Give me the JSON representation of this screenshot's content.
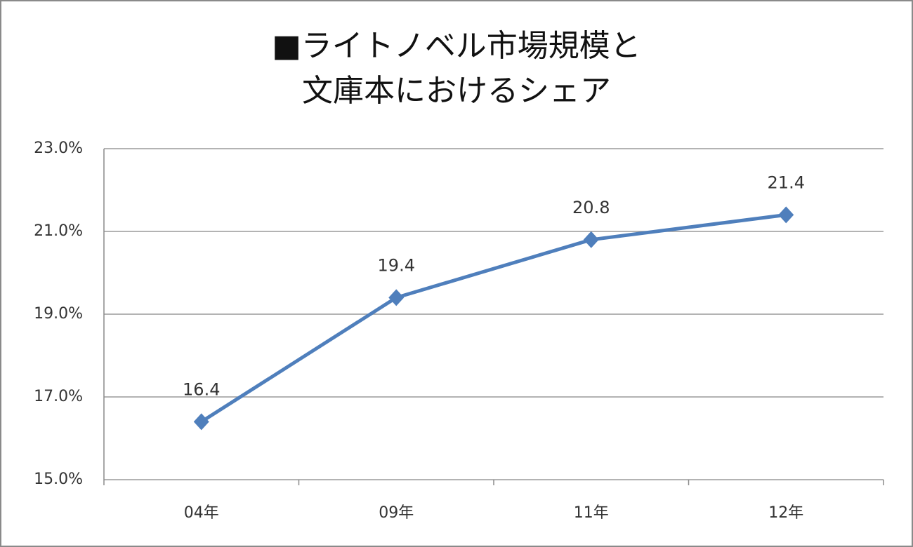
{
  "chart_data": {
    "type": "line",
    "title": [
      "■ライトノベル市場規模と",
      "文庫本におけるシェア"
    ],
    "categories": [
      "04年",
      "09年",
      "11年",
      "12年"
    ],
    "series": [
      {
        "color": "#4f7fbc",
        "values": [
          16.4,
          19.4,
          20.8,
          21.4
        ]
      }
    ],
    "ylim": [
      15,
      23
    ],
    "yticks": [
      {
        "value": 15,
        "label": "15.0%"
      },
      {
        "value": 17,
        "label": "17.0%"
      },
      {
        "value": 19,
        "label": "19.0%"
      },
      {
        "value": 21,
        "label": "21.0%"
      },
      {
        "value": 23,
        "label": "23.0%"
      }
    ],
    "grid": true
  }
}
